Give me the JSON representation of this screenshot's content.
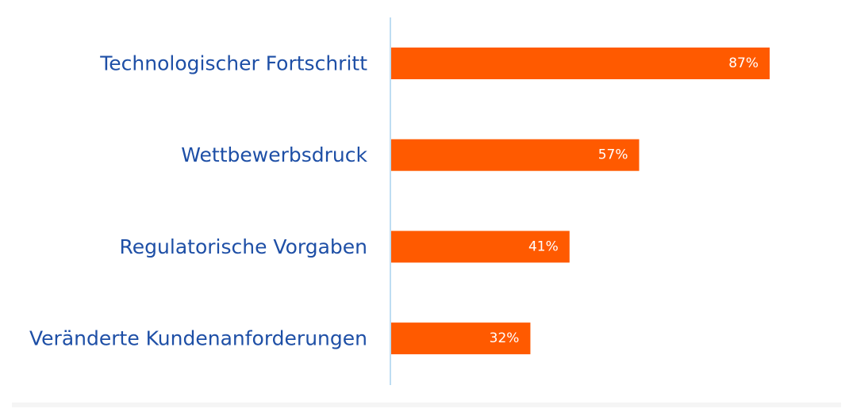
{
  "chart_data": {
    "type": "bar",
    "orientation": "horizontal",
    "categories": [
      "Technologischer Fortschritt",
      "Wettbewerbsdruck",
      "Regulatorische Vorgaben",
      "Veränderte Kundenanforderungen"
    ],
    "values": [
      87,
      57,
      41,
      32
    ],
    "value_labels": [
      "87%",
      "57%",
      "41%",
      "32%"
    ],
    "unit": "%",
    "xlim": [
      0,
      100
    ],
    "grid": false,
    "legend": "none"
  },
  "colors": {
    "bar": "#ff5a00",
    "category_text": "#1e4fa6",
    "value_text": "#ffffff",
    "axis": "#a8d2ee",
    "baseline_shadow": "#f3f3f3"
  }
}
